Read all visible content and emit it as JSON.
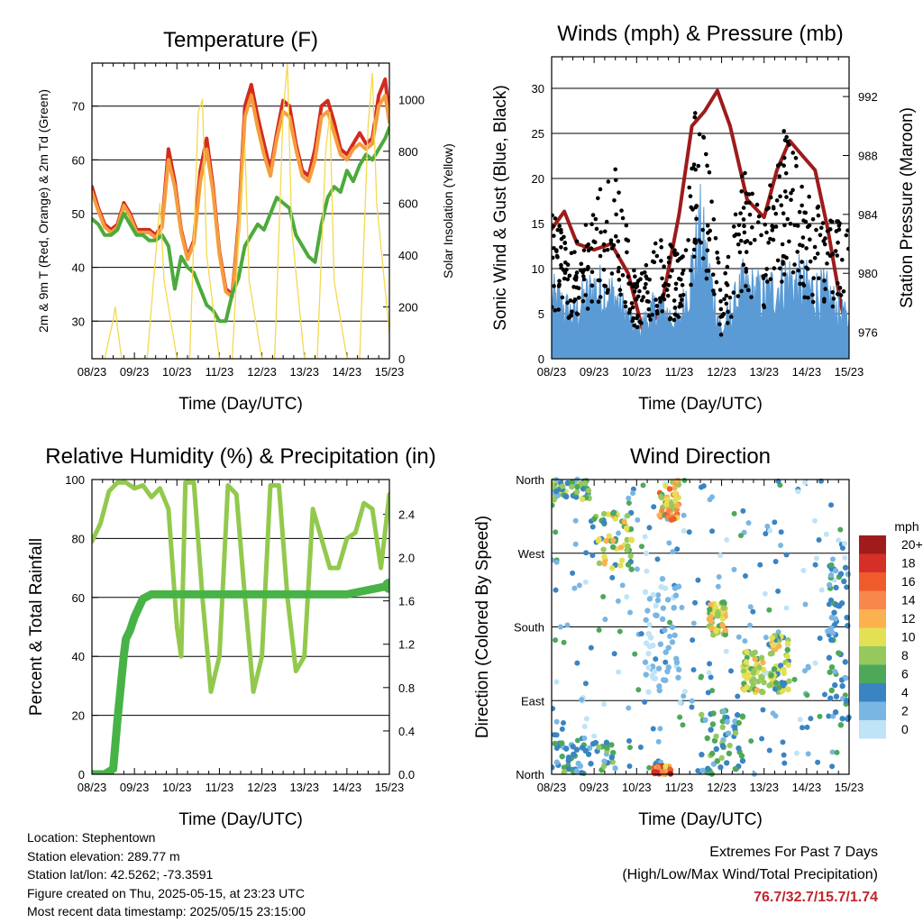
{
  "panels": {
    "temperature": {
      "title": "Temperature (F)",
      "ylabel_left": "2m & 9m T (Red, Orange) & 2m Td (Green)",
      "ylabel_right": "Solar Insolation (Yellow)",
      "xlabel": "Time (Day/UTC)"
    },
    "winds": {
      "title": "Winds (mph) & Pressure (mb)",
      "ylabel_left": "Sonic Wind & Gust (Blue, Black)",
      "ylabel_right": "Station Pressure (Maroon)",
      "xlabel": "Time (Day/UTC)"
    },
    "humidity": {
      "title": "Relative Humidity (%) & Precipitation (in)",
      "ylabel_left": "Percent & Total Rainfall",
      "xlabel": "Time (Day/UTC)"
    },
    "direction": {
      "title": "Wind Direction",
      "ylabel_left": "Direction (Colored By Speed)",
      "xlabel": "Time (Day/UTC)",
      "colorbar_title": "mph",
      "colorbar_labels": [
        "20+",
        "18",
        "16",
        "14",
        "12",
        "10",
        "8",
        "6",
        "4",
        "2",
        "0"
      ],
      "colorbar_colors": [
        "#a01c1c",
        "#d62f27",
        "#ef5b2b",
        "#f7874a",
        "#fbb14e",
        "#e3e053",
        "#95c95e",
        "#4da85a",
        "#3a84c2",
        "#7ab6e3",
        "#bfe3f7"
      ]
    }
  },
  "info": {
    "location": "Location: Stephentown",
    "elevation": "Station elevation: 289.77 m",
    "latlon": "Station lat/lon: 42.5262; -73.3591",
    "created": "Figure created on Thu, 2025-05-15, at 23:23 UTC",
    "recent": "Most recent data timestamp: 2025/05/15 23:15:00"
  },
  "extremes": {
    "title": "Extremes For Past 7 Days",
    "subtitle": "(High/Low/Max Wind/Total Precipitation)",
    "values": "76.7/32.7/15.7/1.74"
  },
  "chart_data": [
    {
      "type": "line",
      "id": "temperature",
      "x_ticks": [
        "08/23",
        "09/23",
        "10/23",
        "11/23",
        "12/23",
        "13/23",
        "14/23",
        "15/23"
      ],
      "xlim": [
        0,
        7
      ],
      "ylim": [
        23,
        78
      ],
      "y_ticks": [
        30,
        40,
        50,
        60,
        70
      ],
      "y2lim": [
        0,
        1140
      ],
      "y2_ticks": [
        0,
        200,
        400,
        600,
        800,
        1000
      ],
      "grid": true,
      "series": [
        {
          "color": "#d42a1f",
          "axis": "left",
          "x": [
            0,
            0.15,
            0.3,
            0.45,
            0.6,
            0.75,
            0.9,
            1.05,
            1.2,
            1.35,
            1.5,
            1.65,
            1.8,
            1.95,
            2.1,
            2.25,
            2.4,
            2.55,
            2.7,
            2.85,
            3.0,
            3.15,
            3.3,
            3.45,
            3.6,
            3.75,
            3.9,
            4.05,
            4.2,
            4.35,
            4.5,
            4.65,
            4.8,
            4.95,
            5.1,
            5.25,
            5.4,
            5.55,
            5.7,
            5.85,
            6.0,
            6.15,
            6.3,
            6.45,
            6.6,
            6.75,
            6.9,
            7.0
          ],
          "y": [
            55,
            51,
            48,
            47,
            48,
            52,
            50,
            47,
            47,
            47,
            46,
            48,
            62,
            56,
            47,
            42,
            45,
            58,
            64,
            55,
            43,
            36,
            35,
            48,
            70,
            74,
            68,
            63,
            58,
            65,
            71,
            70,
            63,
            58,
            57,
            62,
            70,
            71,
            67,
            62,
            61,
            63,
            65,
            63,
            64,
            72,
            75,
            68
          ]
        },
        {
          "color": "#f59d3d",
          "axis": "left",
          "x": [
            0,
            0.15,
            0.3,
            0.45,
            0.6,
            0.75,
            0.9,
            1.05,
            1.2,
            1.35,
            1.5,
            1.65,
            1.8,
            1.95,
            2.1,
            2.25,
            2.4,
            2.55,
            2.7,
            2.85,
            3.0,
            3.15,
            3.3,
            3.45,
            3.6,
            3.75,
            3.9,
            4.05,
            4.2,
            4.35,
            4.5,
            4.65,
            4.8,
            4.95,
            5.1,
            5.25,
            5.4,
            5.55,
            5.7,
            5.85,
            6.0,
            6.15,
            6.3,
            6.45,
            6.6,
            6.75,
            6.9,
            7.0
          ],
          "y": [
            54,
            50.5,
            47.5,
            46.5,
            47.5,
            51.5,
            49.5,
            46.5,
            46.5,
            46.5,
            45.5,
            47.5,
            60,
            55,
            46.5,
            41.5,
            44.5,
            56,
            62,
            54,
            42.5,
            35.5,
            34.5,
            47,
            68,
            72,
            66,
            61,
            57,
            64,
            69,
            68,
            62,
            57,
            56,
            60,
            68,
            69,
            65,
            61,
            60,
            62,
            63,
            62,
            63,
            70,
            72,
            67
          ]
        },
        {
          "color": "#4caa3c",
          "axis": "left",
          "x": [
            0,
            0.15,
            0.3,
            0.45,
            0.6,
            0.75,
            0.9,
            1.05,
            1.2,
            1.35,
            1.5,
            1.65,
            1.8,
            1.95,
            2.1,
            2.25,
            2.4,
            2.55,
            2.7,
            2.85,
            3.0,
            3.15,
            3.3,
            3.45,
            3.6,
            3.75,
            3.9,
            4.05,
            4.2,
            4.35,
            4.5,
            4.65,
            4.8,
            4.95,
            5.1,
            5.25,
            5.4,
            5.55,
            5.7,
            5.85,
            6.0,
            6.15,
            6.3,
            6.45,
            6.6,
            6.75,
            6.9,
            7.0
          ],
          "y": [
            49,
            48,
            46,
            46,
            47,
            50,
            48,
            46,
            46,
            45,
            45,
            46,
            44,
            36,
            42,
            40,
            39,
            36,
            33,
            32,
            30,
            30,
            35,
            38,
            44,
            46,
            48,
            47,
            50,
            53,
            52,
            51,
            46,
            44,
            42,
            41,
            48,
            53,
            55,
            54,
            58,
            56,
            59,
            61,
            60,
            62,
            64,
            66
          ]
        },
        {
          "color": "#f4d94e",
          "axis": "right",
          "x": [
            0,
            0.3,
            0.5,
            0.55,
            0.6,
            0.7,
            1.0,
            1.3,
            1.5,
            1.6,
            1.7,
            2.0,
            2.3,
            2.5,
            2.6,
            2.7,
            3.0,
            3.3,
            3.5,
            3.6,
            3.7,
            4.0,
            4.3,
            4.5,
            4.6,
            4.7,
            5.0,
            5.3,
            5.5,
            5.6,
            5.7,
            6.0,
            6.3,
            6.5,
            6.6,
            6.7,
            7.0
          ],
          "y": [
            0,
            0,
            150,
            200,
            120,
            0,
            0,
            0,
            400,
            600,
            300,
            0,
            0,
            950,
            1000,
            400,
            0,
            0,
            600,
            820,
            300,
            0,
            0,
            950,
            1140,
            500,
            0,
            0,
            800,
            950,
            300,
            0,
            0,
            900,
            1100,
            600,
            100
          ]
        }
      ]
    },
    {
      "type": "line",
      "id": "winds",
      "x_ticks": [
        "08/23",
        "09/23",
        "10/23",
        "11/23",
        "12/23",
        "13/23",
        "14/23",
        "15/23"
      ],
      "xlim": [
        0,
        7
      ],
      "ylim": [
        0,
        33.5
      ],
      "y_ticks": [
        0,
        5,
        10,
        15,
        20,
        25,
        30
      ],
      "y2lim": [
        974.2,
        994.7
      ],
      "y2_ticks": [
        976,
        980,
        984,
        988,
        992
      ],
      "grid": true,
      "series": [
        {
          "color": "#9e1b1b",
          "axis": "right",
          "x": [
            0,
            0.3,
            0.6,
            1.0,
            1.4,
            1.8,
            2.2,
            2.6,
            3.0,
            3.3,
            3.6,
            3.9,
            4.2,
            4.6,
            5.0,
            5.3,
            5.6,
            5.9,
            6.2,
            6.5,
            6.8,
            7.0
          ],
          "y": [
            983.0,
            984.2,
            982.0,
            981.6,
            982.0,
            980.0,
            975.5,
            978.0,
            984.0,
            990.0,
            991.0,
            992.4,
            990.0,
            985.0,
            983.8,
            987.0,
            989.0,
            988.0,
            987.0,
            983.0,
            978.0,
            975.5
          ]
        },
        {
          "color": "#5b9bd5",
          "axis": "left",
          "label": "wind",
          "x": [
            0,
            0.5,
            1.0,
            1.5,
            2.0,
            2.5,
            3.0,
            3.5,
            4.0,
            4.5,
            5.0,
            5.5,
            6.0,
            6.5,
            7.0
          ],
          "y": [
            7,
            5,
            8,
            7,
            3,
            6,
            4,
            14,
            3,
            8,
            7,
            9,
            8,
            7,
            4
          ]
        },
        {
          "color": "#000000",
          "axis": "left",
          "label": "gust",
          "x": [
            0,
            0.5,
            1.0,
            1.5,
            2.0,
            2.5,
            3.0,
            3.5,
            4.0,
            4.5,
            5.0,
            5.5,
            6.0,
            6.5,
            7.0
          ],
          "y": [
            14,
            10,
            15,
            18,
            7,
            12,
            10,
            27,
            6,
            18,
            14,
            22,
            16,
            14,
            12
          ]
        }
      ]
    },
    {
      "type": "line",
      "id": "humidity",
      "x_ticks": [
        "08/23",
        "09/23",
        "10/23",
        "11/23",
        "12/23",
        "13/23",
        "14/23",
        "15/23"
      ],
      "xlim": [
        0,
        7
      ],
      "ylim": [
        0,
        100
      ],
      "y_ticks": [
        0,
        20,
        40,
        60,
        80,
        100
      ],
      "y2lim": [
        0,
        2.72
      ],
      "y2_ticks": [
        "0.0",
        "0.4",
        "0.8",
        "1.2",
        "1.6",
        "2.0",
        "2.4"
      ],
      "grid": true,
      "series": [
        {
          "color": "#92c94d",
          "axis": "left",
          "x": [
            0,
            0.2,
            0.4,
            0.6,
            0.8,
            1.0,
            1.2,
            1.4,
            1.6,
            1.8,
            2.0,
            2.1,
            2.2,
            2.4,
            2.6,
            2.8,
            3.0,
            3.2,
            3.4,
            3.6,
            3.8,
            4.0,
            4.2,
            4.4,
            4.6,
            4.8,
            5.0,
            5.2,
            5.4,
            5.6,
            5.8,
            6.0,
            6.2,
            6.4,
            6.6,
            6.8,
            7.0
          ],
          "y": [
            79,
            85,
            96,
            99,
            99,
            97,
            98,
            94,
            97,
            90,
            50,
            40,
            99,
            99,
            60,
            28,
            40,
            98,
            95,
            60,
            28,
            40,
            98,
            98,
            60,
            35,
            40,
            90,
            80,
            70,
            70,
            80,
            82,
            92,
            90,
            70,
            95
          ]
        },
        {
          "color": "#47b347",
          "axis": "right",
          "x": [
            0,
            0.3,
            0.5,
            0.6,
            0.75,
            0.8,
            0.9,
            1.0,
            1.2,
            1.4,
            2.0,
            3.0,
            4.0,
            5.0,
            6.0,
            7.0
          ],
          "y": [
            0,
            0,
            0.05,
            0.5,
            1.1,
            1.25,
            1.33,
            1.45,
            1.62,
            1.66,
            1.66,
            1.66,
            1.66,
            1.66,
            1.66,
            1.74
          ]
        }
      ]
    },
    {
      "type": "scatter",
      "id": "direction",
      "x_ticks": [
        "08/23",
        "09/23",
        "10/23",
        "11/23",
        "12/23",
        "13/23",
        "14/23",
        "15/23"
      ],
      "xlim": [
        0,
        7
      ],
      "y_tick_labels": [
        "North",
        "East",
        "South",
        "West",
        "North"
      ],
      "ylim": [
        0,
        360
      ],
      "grid": true,
      "clusters": [
        {
          "x": [
            0.0,
            0.9
          ],
          "y": [
            335,
            360
          ],
          "speed": [
            2,
            10
          ]
        },
        {
          "x": [
            1.0,
            1.9
          ],
          "y": [
            250,
            320
          ],
          "speed": [
            4,
            12
          ]
        },
        {
          "x": [
            2.5,
            3.0
          ],
          "y": [
            310,
            360
          ],
          "speed": [
            6,
            16
          ]
        },
        {
          "x": [
            3.7,
            4.1
          ],
          "y": [
            170,
            210
          ],
          "speed": [
            6,
            12
          ]
        },
        {
          "x": [
            4.5,
            5.0
          ],
          "y": [
            100,
            150
          ],
          "speed": [
            6,
            12
          ]
        },
        {
          "x": [
            5.1,
            5.6
          ],
          "y": [
            100,
            170
          ],
          "speed": [
            4,
            12
          ]
        },
        {
          "x": [
            0.0,
            1.5
          ],
          "y": [
            0,
            40
          ],
          "speed": [
            2,
            8
          ]
        },
        {
          "x": [
            2.4,
            2.8
          ],
          "y": [
            0,
            10
          ],
          "speed": [
            10,
            20
          ]
        },
        {
          "x": [
            3.5,
            4.5
          ],
          "y": [
            0,
            80
          ],
          "speed": [
            2,
            8
          ]
        },
        {
          "x": [
            6.5,
            7.0
          ],
          "y": [
            60,
            260
          ],
          "speed": [
            2,
            6
          ]
        },
        {
          "x": [
            2.2,
            3.0
          ],
          "y": [
            100,
            240
          ],
          "speed": [
            0,
            3
          ]
        }
      ]
    }
  ]
}
